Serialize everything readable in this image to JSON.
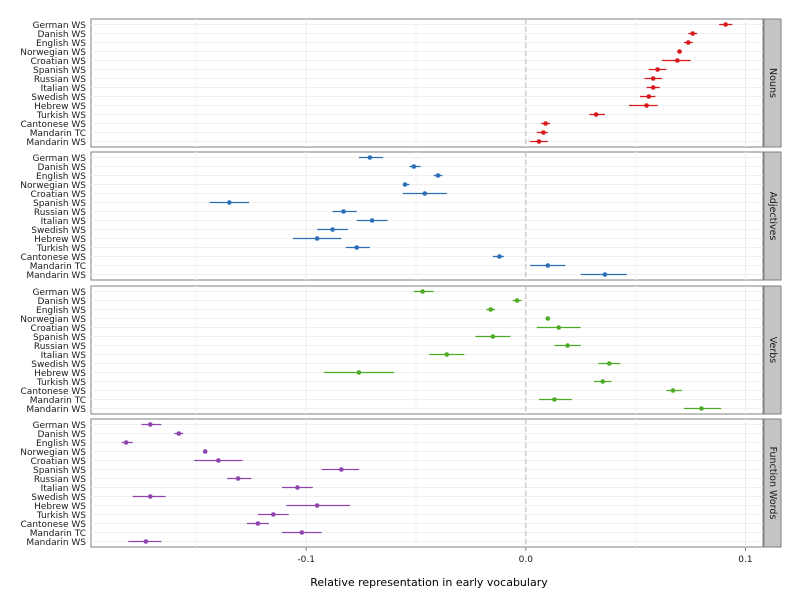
{
  "chart_data": {
    "type": "scatter",
    "subtype": "dot-and-whisker, faceted by lexical category",
    "xlabel": "Relative representation in early vocabulary",
    "x_ticks": [
      -0.1,
      0.0,
      0.1
    ],
    "x_tick_labels": [
      "-0.1",
      "0.0",
      "0.1"
    ],
    "xlim": [
      -0.198,
      0.108
    ],
    "reference_line_x": 0,
    "grid": true,
    "languages": [
      "German WS",
      "Danish WS",
      "English WS",
      "Norwegian WS",
      "Croatian WS",
      "Spanish WS",
      "Russian WS",
      "Italian WS",
      "Swedish WS",
      "Hebrew WS",
      "Turkish WS",
      "Cantonese WS",
      "Mandarin TC",
      "Mandarin WS"
    ],
    "panels": [
      {
        "label": "Nouns",
        "color": "#d7191c",
        "points": [
          {
            "language": "German WS",
            "value": 0.091,
            "lo": 0.088,
            "hi": 0.094
          },
          {
            "language": "Danish WS",
            "value": 0.076,
            "lo": 0.074,
            "hi": 0.078
          },
          {
            "language": "English WS",
            "value": 0.074,
            "lo": 0.072,
            "hi": 0.076
          },
          {
            "language": "Norwegian WS",
            "value": 0.07,
            "lo": 0.069,
            "hi": 0.071
          },
          {
            "language": "Croatian WS",
            "value": 0.069,
            "lo": 0.062,
            "hi": 0.075
          },
          {
            "language": "Spanish WS",
            "value": 0.06,
            "lo": 0.056,
            "hi": 0.064
          },
          {
            "language": "Russian WS",
            "value": 0.058,
            "lo": 0.054,
            "hi": 0.062
          },
          {
            "language": "Italian WS",
            "value": 0.058,
            "lo": 0.055,
            "hi": 0.061
          },
          {
            "language": "Swedish WS",
            "value": 0.056,
            "lo": 0.052,
            "hi": 0.059
          },
          {
            "language": "Hebrew WS",
            "value": 0.055,
            "lo": 0.047,
            "hi": 0.06
          },
          {
            "language": "Turkish WS",
            "value": 0.032,
            "lo": 0.029,
            "hi": 0.036
          },
          {
            "language": "Cantonese WS",
            "value": 0.009,
            "lo": 0.007,
            "hi": 0.011
          },
          {
            "language": "Mandarin TC",
            "value": 0.008,
            "lo": 0.005,
            "hi": 0.01
          },
          {
            "language": "Mandarin WS",
            "value": 0.006,
            "lo": 0.002,
            "hi": 0.01
          }
        ]
      },
      {
        "label": "Adjectives",
        "color": "#2c6fb6",
        "points": [
          {
            "language": "German WS",
            "value": -0.071,
            "lo": -0.076,
            "hi": -0.065
          },
          {
            "language": "Danish WS",
            "value": -0.051,
            "lo": -0.053,
            "hi": -0.048
          },
          {
            "language": "English WS",
            "value": -0.04,
            "lo": -0.042,
            "hi": -0.038
          },
          {
            "language": "Norwegian WS",
            "value": -0.055,
            "lo": -0.056,
            "hi": -0.053
          },
          {
            "language": "Croatian WS",
            "value": -0.046,
            "lo": -0.056,
            "hi": -0.036
          },
          {
            "language": "Spanish WS",
            "value": -0.135,
            "lo": -0.144,
            "hi": -0.126
          },
          {
            "language": "Russian WS",
            "value": -0.083,
            "lo": -0.088,
            "hi": -0.077
          },
          {
            "language": "Italian WS",
            "value": -0.07,
            "lo": -0.077,
            "hi": -0.063
          },
          {
            "language": "Swedish WS",
            "value": -0.088,
            "lo": -0.095,
            "hi": -0.081
          },
          {
            "language": "Hebrew WS",
            "value": -0.095,
            "lo": -0.106,
            "hi": -0.084
          },
          {
            "language": "Turkish WS",
            "value": -0.077,
            "lo": -0.082,
            "hi": -0.071
          },
          {
            "language": "Cantonese WS",
            "value": -0.012,
            "lo": -0.015,
            "hi": -0.01
          },
          {
            "language": "Mandarin TC",
            "value": 0.01,
            "lo": 0.002,
            "hi": 0.018
          },
          {
            "language": "Mandarin WS",
            "value": 0.036,
            "lo": 0.025,
            "hi": 0.046
          }
        ]
      },
      {
        "label": "Verbs",
        "color": "#4dac26",
        "points": [
          {
            "language": "German WS",
            "value": -0.047,
            "lo": -0.051,
            "hi": -0.042
          },
          {
            "language": "Danish WS",
            "value": -0.004,
            "lo": -0.006,
            "hi": -0.002
          },
          {
            "language": "English WS",
            "value": -0.016,
            "lo": -0.018,
            "hi": -0.014
          },
          {
            "language": "Norwegian WS",
            "value": 0.01,
            "lo": 0.009,
            "hi": 0.011
          },
          {
            "language": "Croatian WS",
            "value": 0.015,
            "lo": 0.005,
            "hi": 0.025
          },
          {
            "language": "Spanish WS",
            "value": -0.015,
            "lo": -0.023,
            "hi": -0.007
          },
          {
            "language": "Russian WS",
            "value": 0.019,
            "lo": 0.013,
            "hi": 0.025
          },
          {
            "language": "Italian WS",
            "value": -0.036,
            "lo": -0.044,
            "hi": -0.028
          },
          {
            "language": "Swedish WS",
            "value": 0.038,
            "lo": 0.033,
            "hi": 0.043
          },
          {
            "language": "Hebrew WS",
            "value": -0.076,
            "lo": -0.092,
            "hi": -0.06
          },
          {
            "language": "Turkish WS",
            "value": 0.035,
            "lo": 0.031,
            "hi": 0.039
          },
          {
            "language": "Cantonese WS",
            "value": 0.067,
            "lo": 0.064,
            "hi": 0.071
          },
          {
            "language": "Mandarin TC",
            "value": 0.013,
            "lo": 0.006,
            "hi": 0.021
          },
          {
            "language": "Mandarin WS",
            "value": 0.08,
            "lo": 0.072,
            "hi": 0.089
          }
        ]
      },
      {
        "label": "Function Words",
        "color": "#8e44ad",
        "points": [
          {
            "language": "German WS",
            "value": -0.171,
            "lo": -0.175,
            "hi": -0.166
          },
          {
            "language": "Danish WS",
            "value": -0.158,
            "lo": -0.16,
            "hi": -0.156
          },
          {
            "language": "English WS",
            "value": -0.182,
            "lo": -0.184,
            "hi": -0.179
          },
          {
            "language": "Norwegian WS",
            "value": -0.146,
            "lo": -0.147,
            "hi": -0.145
          },
          {
            "language": "Croatian WS",
            "value": -0.14,
            "lo": -0.151,
            "hi": -0.129
          },
          {
            "language": "Spanish WS",
            "value": -0.084,
            "lo": -0.093,
            "hi": -0.076
          },
          {
            "language": "Russian WS",
            "value": -0.131,
            "lo": -0.136,
            "hi": -0.125
          },
          {
            "language": "Italian WS",
            "value": -0.104,
            "lo": -0.111,
            "hi": -0.097
          },
          {
            "language": "Swedish WS",
            "value": -0.171,
            "lo": -0.179,
            "hi": -0.164
          },
          {
            "language": "Hebrew WS",
            "value": -0.095,
            "lo": -0.109,
            "hi": -0.08
          },
          {
            "language": "Turkish WS",
            "value": -0.115,
            "lo": -0.122,
            "hi": -0.108
          },
          {
            "language": "Cantonese WS",
            "value": -0.122,
            "lo": -0.127,
            "hi": -0.117
          },
          {
            "language": "Mandarin TC",
            "value": -0.102,
            "lo": -0.111,
            "hi": -0.093
          },
          {
            "language": "Mandarin WS",
            "value": -0.173,
            "lo": -0.181,
            "hi": -0.166
          }
        ]
      }
    ]
  }
}
